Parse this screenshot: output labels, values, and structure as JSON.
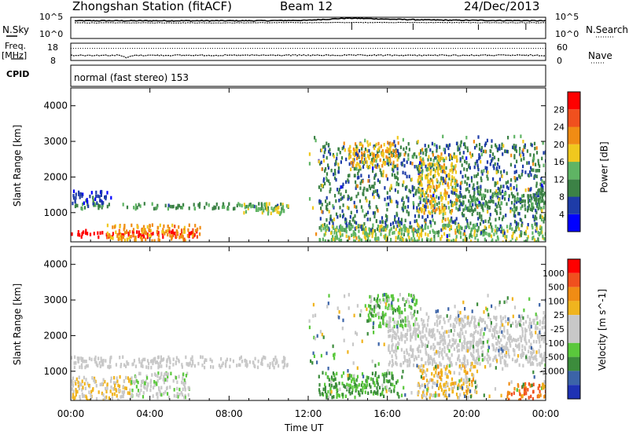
{
  "header": {
    "station": "Zhongshan Station (fitACF)",
    "beam": "Beam 12",
    "date": "24/Dec/2013"
  },
  "top_panels": {
    "nsky_label": "N.Sky",
    "nsky_ticks": [
      "10^5",
      "10^0"
    ],
    "nsearch_label": "N.Search",
    "nsearch_ticks": [
      "10^5",
      "10^0"
    ],
    "freq_label": "Freq.",
    "freq_unit": "[MHz]",
    "freq_ticks": [
      "18",
      "8"
    ],
    "nave_label": "Nave",
    "nave_ticks": [
      "60",
      "0"
    ],
    "cpid_label": "CPID",
    "cpid_text": "normal (fast stereo) 153"
  },
  "x_axis": {
    "label": "Time UT",
    "ticks": [
      "00:00",
      "04:00",
      "08:00",
      "12:00",
      "16:00",
      "20:00",
      "00:00"
    ]
  },
  "colors": {
    "power": [
      "#0000ff",
      "#1e3ca8",
      "#3c8246",
      "#5fb464",
      "#f0c81e",
      "#f08c14",
      "#f0501e",
      "#ff0000"
    ],
    "velocity": [
      "#1e32b4",
      "#3c64a8",
      "#3c8c3c",
      "#5ac83c",
      "#c8c8c8",
      "#c8c8c8",
      "#f0b41e",
      "#f08c14",
      "#f0501e",
      "#ff0000"
    ]
  },
  "chart_data": [
    {
      "type": "line",
      "name": "sky-noise-panel",
      "x_range": [
        0,
        24
      ],
      "y_scale": "log",
      "ylim": [
        1,
        100000
      ],
      "series": [
        {
          "x": [
            0.2,
            2,
            4,
            6,
            8,
            10,
            12,
            13,
            14,
            15,
            16,
            18,
            20,
            22,
            24
          ],
          "values": [
            30000,
            30000,
            30000,
            30000,
            30000,
            32000,
            40000,
            80000,
            150000,
            120000,
            80000,
            50000,
            40000,
            35000,
            30000
          ]
        },
        {
          "x": [
            0.2,
            4,
            8,
            12,
            16,
            20,
            24
          ],
          "values": [
            8000,
            8000,
            8000,
            9000,
            10000,
            9000,
            8000
          ]
        }
      ]
    },
    {
      "type": "line",
      "name": "frequency-nave-panel",
      "x_range": [
        0,
        24
      ],
      "series": [
        {
          "x": [
            0,
            2.5,
            2.8,
            3.2,
            24
          ],
          "values": [
            11,
            11,
            9.5,
            11,
            11
          ]
        },
        {
          "x": [
            0,
            24
          ],
          "values": [
            42,
            42
          ]
        }
      ]
    },
    {
      "type": "heatmap",
      "title": "",
      "xlabel": "Time UT",
      "ylabel": "Slant Range [km]",
      "x_range": [
        0,
        24
      ],
      "ylim": [
        180,
        4500
      ],
      "yticks": [
        "1000",
        "2000",
        "3000",
        "4000"
      ],
      "colorbar": {
        "label": "Power [dB]",
        "ticks": [
          "4",
          "8",
          "12",
          "16",
          "20",
          "24",
          "28"
        ],
        "range": [
          0,
          30
        ]
      },
      "regions": [
        {
          "x": [
            0,
            6.5
          ],
          "y": [
            350,
            550
          ],
          "value": 29
        },
        {
          "x": [
            1.8,
            6.5
          ],
          "y": [
            250,
            700
          ],
          "value": 20
        },
        {
          "x": [
            0,
            11
          ],
          "y": [
            1150,
            1300
          ],
          "value": 10
        },
        {
          "x": [
            8.5,
            11
          ],
          "y": [
            1000,
            1300
          ],
          "value": 15
        },
        {
          "x": [
            0,
            2
          ],
          "y": [
            1300,
            1650
          ],
          "value": 5
        },
        {
          "x": [
            12.5,
            24
          ],
          "y": [
            500,
            3000
          ],
          "value": 8
        },
        {
          "x": [
            14,
            16.5
          ],
          "y": [
            2300,
            3000
          ],
          "value": 18
        },
        {
          "x": [
            17.5,
            19.5
          ],
          "y": [
            1000,
            2700
          ],
          "value": 17
        },
        {
          "x": [
            19.5,
            24
          ],
          "y": [
            1100,
            1600
          ],
          "value": 10
        },
        {
          "x": [
            12.5,
            24
          ],
          "y": [
            200,
            700
          ],
          "value": 14
        }
      ]
    },
    {
      "type": "heatmap",
      "title": "",
      "xlabel": "Time UT",
      "ylabel": "Slant Range [km]",
      "x_range": [
        0,
        24
      ],
      "ylim": [
        180,
        4500
      ],
      "yticks": [
        "1000",
        "2000",
        "3000",
        "4000"
      ],
      "colorbar": {
        "label": "Velocity [m s^-1]",
        "ticks": [
          "1000",
          "500",
          "100",
          "25",
          "-25",
          "-100",
          "-500",
          "-1000"
        ],
        "range": [
          -1200,
          1200
        ]
      },
      "regions": [
        {
          "x": [
            0,
            11
          ],
          "y": [
            1150,
            1450
          ],
          "value": 0
        },
        {
          "x": [
            0,
            3
          ],
          "y": [
            200,
            900
          ],
          "value": 200
        },
        {
          "x": [
            3,
            6
          ],
          "y": [
            300,
            1000
          ],
          "value": -150
        },
        {
          "x": [
            12.5,
            16.5
          ],
          "y": [
            300,
            1000
          ],
          "value": -500
        },
        {
          "x": [
            15,
            17.5
          ],
          "y": [
            2300,
            3200
          ],
          "value": -400
        },
        {
          "x": [
            16,
            24
          ],
          "y": [
            1200,
            2600
          ],
          "value": 0
        },
        {
          "x": [
            17.5,
            20.5
          ],
          "y": [
            300,
            1200
          ],
          "value": 300
        },
        {
          "x": [
            22,
            24
          ],
          "y": [
            200,
            700
          ],
          "value": 700
        }
      ]
    }
  ]
}
